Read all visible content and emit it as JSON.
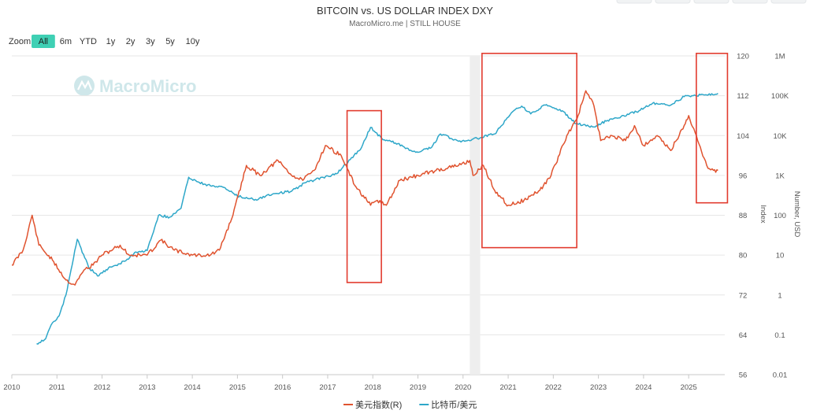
{
  "title": "BITCOIN vs. US DOLLAR INDEX DXY",
  "subtitle": "MacroMicro.me | STILL HOUSE",
  "watermark": "MacroMicro",
  "zoom": {
    "label": "Zoom",
    "options": [
      "All",
      "6m",
      "YTD",
      "1y",
      "2y",
      "3y",
      "5y",
      "10y"
    ],
    "selected": "All"
  },
  "colors": {
    "dxy": "#e0532f",
    "btc": "#2ea7c9",
    "highlight_box": "#e23b2e",
    "shade": "#eeeeee",
    "active_zoom": "#3fd0b4"
  },
  "chart_data": {
    "type": "line",
    "x_axis": {
      "range": [
        2010,
        2025.8
      ],
      "ticks": [
        "2010",
        "2011",
        "2012",
        "2013",
        "2014",
        "2015",
        "2016",
        "2017",
        "2018",
        "2019",
        "2020",
        "2021",
        "2022",
        "2023",
        "2024",
        "2025"
      ]
    },
    "axes": {
      "dxy": {
        "label": "Index",
        "range": [
          56,
          120
        ],
        "ticks": [
          "56",
          "64",
          "72",
          "80",
          "88",
          "96",
          "104",
          "112",
          "120"
        ]
      },
      "btc": {
        "label": "Number, USD",
        "scale": "log",
        "range": [
          0.01,
          1000000
        ],
        "ticks": [
          "0.01",
          "0.1",
          "1",
          "10",
          "100",
          "1K",
          "10K",
          "100K",
          "1M"
        ]
      }
    },
    "grid": true,
    "legend_position": "bottom-center",
    "series": [
      {
        "name": "美元指数(R)",
        "axis": "dxy",
        "x": [
          2010.0,
          2010.25,
          2010.45,
          2010.6,
          2010.9,
          2011.2,
          2011.4,
          2011.6,
          2011.8,
          2012.0,
          2012.4,
          2012.6,
          2013.0,
          2013.3,
          2013.6,
          2014.0,
          2014.4,
          2014.6,
          2014.9,
          2015.2,
          2015.5,
          2015.9,
          2016.2,
          2016.45,
          2016.7,
          2016.95,
          2017.3,
          2017.6,
          2017.95,
          2018.1,
          2018.3,
          2018.6,
          2019.0,
          2019.4,
          2019.9,
          2020.15,
          2020.22,
          2020.45,
          2020.7,
          2021.0,
          2021.35,
          2021.7,
          2021.95,
          2022.3,
          2022.55,
          2022.72,
          2022.9,
          2023.05,
          2023.3,
          2023.6,
          2023.8,
          2024.0,
          2024.3,
          2024.6,
          2024.9,
          2025.0,
          2025.2,
          2025.4,
          2025.55,
          2025.65
        ],
        "values": [
          78,
          81,
          88,
          82,
          79,
          75,
          74,
          77,
          78,
          80,
          82,
          80,
          80,
          83,
          81,
          80,
          80,
          81,
          88,
          98,
          96,
          99,
          96,
          95,
          97,
          102,
          100,
          94,
          90,
          91,
          90,
          95,
          96,
          97,
          98,
          99,
          96,
          98,
          93,
          90,
          91,
          93,
          96,
          104,
          108,
          113,
          110,
          103,
          104,
          103,
          106,
          102,
          104,
          101,
          106,
          108,
          103,
          98,
          97,
          97
        ]
      },
      {
        "name": "比特币/美元",
        "axis": "btc",
        "x": [
          2010.55,
          2010.75,
          2010.9,
          2011.05,
          2011.2,
          2011.45,
          2011.7,
          2011.9,
          2012.2,
          2012.5,
          2012.75,
          2013.0,
          2013.25,
          2013.5,
          2013.75,
          2013.92,
          2014.1,
          2014.4,
          2014.7,
          2015.0,
          2015.4,
          2015.8,
          2016.2,
          2016.5,
          2016.9,
          2017.2,
          2017.5,
          2017.75,
          2017.95,
          2018.2,
          2018.5,
          2018.95,
          2019.3,
          2019.5,
          2019.9,
          2020.2,
          2020.4,
          2020.7,
          2020.95,
          2021.1,
          2021.3,
          2021.5,
          2021.85,
          2022.2,
          2022.5,
          2022.9,
          2023.2,
          2023.5,
          2023.9,
          2024.2,
          2024.6,
          2024.9,
          2025.1,
          2025.4,
          2025.65
        ],
        "values": [
          0.06,
          0.08,
          0.2,
          0.3,
          1,
          25,
          5,
          3,
          5,
          7,
          12,
          13,
          100,
          90,
          150,
          900,
          700,
          550,
          500,
          300,
          250,
          350,
          400,
          650,
          900,
          1100,
          2500,
          5000,
          16000,
          8500,
          6500,
          3800,
          5000,
          11000,
          7200,
          8000,
          9000,
          11000,
          25000,
          40000,
          55000,
          35000,
          60000,
          42000,
          20000,
          16500,
          24000,
          30000,
          42000,
          65000,
          58000,
          95000,
          100000,
          105000,
          115000
        ]
      }
    ],
    "annotations": [
      {
        "type": "box",
        "x": [
          2017.43,
          2018.19
        ],
        "y_dxy": [
          74.5,
          109
        ]
      },
      {
        "type": "box",
        "x": [
          2020.42,
          2022.52
        ],
        "y_dxy": [
          81.5,
          120.5
        ]
      },
      {
        "type": "box",
        "x": [
          2025.17,
          2025.86
        ],
        "y_dxy": [
          90.5,
          120.5
        ]
      },
      {
        "type": "band",
        "x": [
          2020.15,
          2020.38
        ]
      }
    ]
  }
}
